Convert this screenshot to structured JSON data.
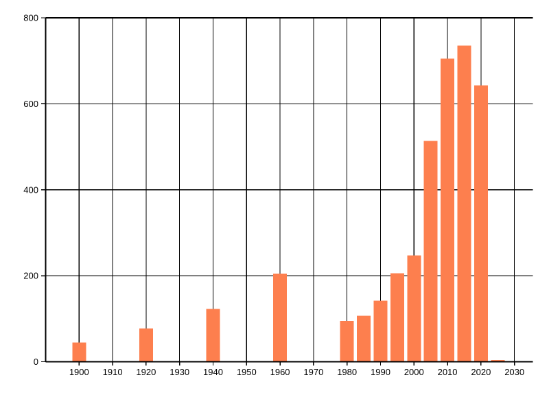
{
  "chart_data": {
    "type": "bar",
    "title": "",
    "xlabel": "",
    "ylabel": "",
    "x": [
      1900,
      1920,
      1940,
      1960,
      1980,
      1985,
      1990,
      1995,
      2000,
      2005,
      2010,
      2015,
      2020,
      2025
    ],
    "values": [
      45,
      77,
      123,
      205,
      95,
      107,
      142,
      206,
      247,
      514,
      705,
      735,
      643,
      4
    ],
    "bar_color": "#fd7f4e",
    "bar_width_years": 4.1,
    "xlim": [
      1890,
      2035.5
    ],
    "ylim": [
      0,
      800
    ],
    "x_ticks": [
      1900,
      1910,
      1920,
      1930,
      1940,
      1950,
      1960,
      1970,
      1980,
      1990,
      2000,
      2010,
      2020,
      2030
    ],
    "y_ticks": [
      0,
      200,
      400,
      600,
      800
    ],
    "grid": true,
    "grid_color": "#000000",
    "axis_color": "#000000",
    "tick_label_color": "#000000",
    "tick_label_size": 13,
    "legend": null,
    "background_color": "#ffffff"
  }
}
